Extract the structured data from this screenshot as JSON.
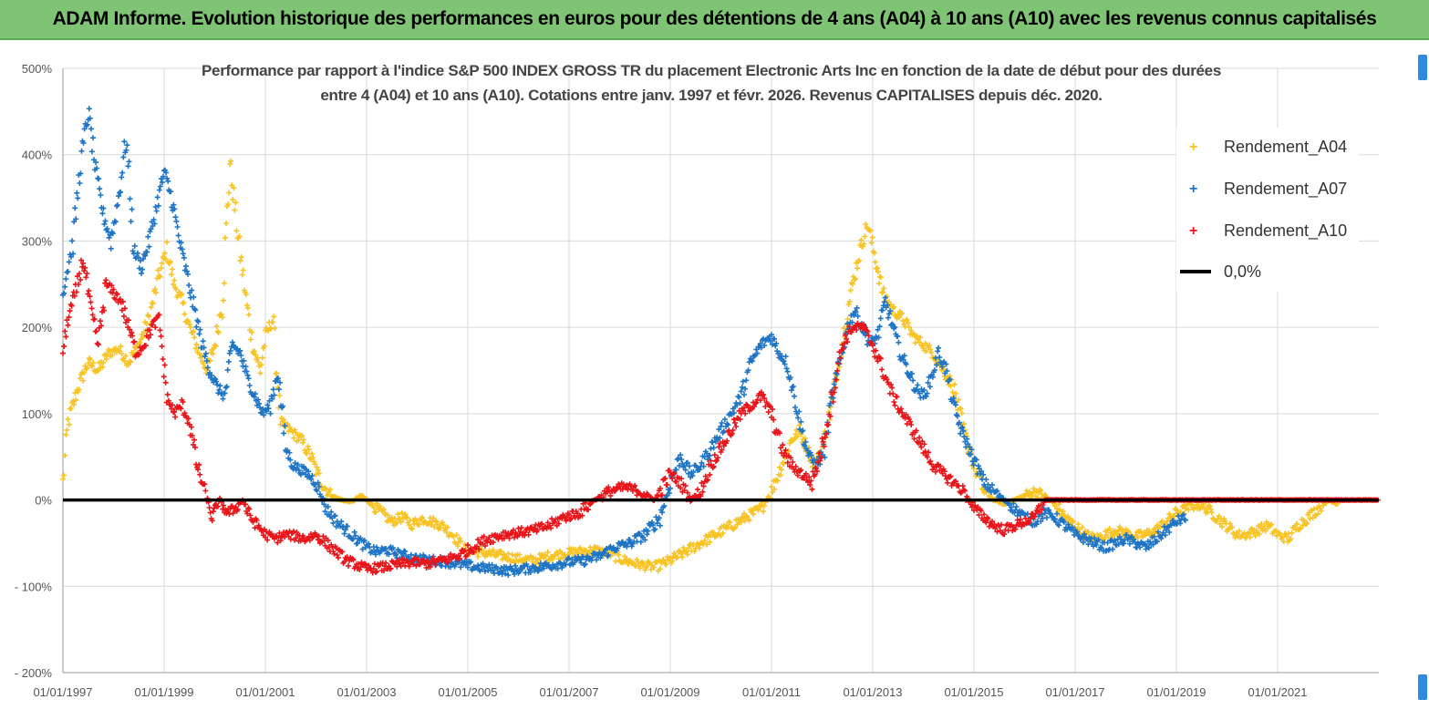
{
  "banner": {
    "title": "ADAM Informe. Evolution historique des performances en euros pour des détentions de 4 ans (A04) à 10 ans (A10) avec les revenus connus capitalisés"
  },
  "colors": {
    "banner_bg": "#7fc374",
    "A04": "#f7c325",
    "A07": "#1f75c4",
    "A10": "#e8151b",
    "zero_line": "#000000",
    "grid": "#d9d9d9"
  },
  "chart_data": {
    "type": "scatter",
    "title_line1": "Performance par rapport à l'indice S&P 500 INDEX GROSS TR  du placement Electronic Arts Inc en fonction de la date de début pour des durées",
    "title_line2": "entre 4 (A04) et 10 ans (A10).  Cotations entre janv. 1997 et févr. 2026. Revenus CAPITALISES depuis déc. 2020.",
    "xlabel": "",
    "ylabel": "",
    "x_range": [
      1997.0,
      2023.0
    ],
    "ylim": [
      -200,
      500
    ],
    "y_ticks": [
      500,
      400,
      300,
      200,
      100,
      0,
      -100,
      -200
    ],
    "y_tick_labels": [
      "500%",
      "400%",
      "300%",
      "200%",
      "100%",
      "0%",
      "- 100%",
      "- 200%"
    ],
    "x_ticks": [
      1997,
      1999,
      2001,
      2003,
      2005,
      2007,
      2009,
      2011,
      2013,
      2015,
      2017,
      2019,
      2021
    ],
    "x_tick_labels": [
      "01/01/1997",
      "01/01/1999",
      "01/01/2001",
      "01/01/2003",
      "01/01/2005",
      "01/01/2007",
      "01/01/2009",
      "01/01/2011",
      "01/01/2013",
      "01/01/2015",
      "01/01/2017",
      "01/01/2019",
      "01/01/2021"
    ],
    "grid": true,
    "legend_position": "top-right",
    "series": [
      {
        "name": "Rendement_A04",
        "marker": "+",
        "x": [
          1997.0,
          1997.1,
          1997.3,
          1997.5,
          1997.7,
          1997.9,
          1998.1,
          1998.3,
          1998.5,
          1998.7,
          1998.9,
          1999.05,
          1999.2,
          1999.35,
          1999.5,
          1999.7,
          1999.85,
          2000.0,
          2000.15,
          2000.3,
          2000.45,
          2000.6,
          2000.75,
          2000.9,
          2001.0,
          2001.15,
          2001.3,
          2001.5,
          2001.7,
          2001.9,
          2002.1,
          2002.3,
          2002.5,
          2002.7,
          2002.9,
          2003.1,
          2003.3,
          2003.5,
          2003.7,
          2003.9,
          2004.1,
          2004.3,
          2004.5,
          2004.7,
          2004.9,
          2005.1,
          2005.4,
          2005.7,
          2006.0,
          2006.3,
          2006.6,
          2006.9,
          2007.2,
          2007.5,
          2007.8,
          2008.1,
          2008.4,
          2008.7,
          2009.0,
          2009.3,
          2009.6,
          2009.9,
          2010.2,
          2010.5,
          2010.8,
          2011.0,
          2011.2,
          2011.4,
          2011.55,
          2011.7,
          2011.85,
          2012.0,
          2012.15,
          2012.3,
          2012.45,
          2012.6,
          2012.75,
          2012.9,
          2013.05,
          2013.2,
          2013.4,
          2013.6,
          2013.8,
          2014.0,
          2014.2,
          2014.4,
          2014.6,
          2014.8,
          2015.0,
          2015.2,
          2015.4,
          2015.6,
          2015.8,
          2016.0,
          2016.2,
          2016.4,
          2016.6,
          2016.8,
          2017.0,
          2017.2,
          2017.4,
          2017.6,
          2017.8,
          2018.0,
          2018.2,
          2018.4,
          2018.6,
          2018.8,
          2019.0,
          2019.2,
          2019.4,
          2019.6,
          2019.8,
          2020.0,
          2020.2,
          2020.4,
          2020.6,
          2020.8,
          2021.0,
          2021.2,
          2021.4,
          2021.6,
          2021.8,
          2022.0,
          2022.2
        ],
        "y": [
          20,
          90,
          130,
          160,
          150,
          170,
          175,
          160,
          180,
          210,
          260,
          290,
          250,
          230,
          200,
          170,
          150,
          180,
          230,
          390,
          310,
          240,
          180,
          150,
          190,
          210,
          90,
          80,
          70,
          50,
          20,
          5,
          0,
          -2,
          5,
          -5,
          -15,
          -25,
          -20,
          -28,
          -22,
          -25,
          -30,
          -40,
          -55,
          -60,
          -62,
          -65,
          -68,
          -70,
          -65,
          -62,
          -60,
          -58,
          -62,
          -70,
          -75,
          -78,
          -70,
          -60,
          -50,
          -40,
          -30,
          -20,
          -10,
          10,
          40,
          70,
          80,
          60,
          40,
          60,
          100,
          150,
          200,
          250,
          290,
          320,
          280,
          240,
          220,
          210,
          190,
          180,
          170,
          150,
          130,
          80,
          40,
          10,
          0,
          -5,
          0,
          5,
          10,
          5,
          -5,
          -20,
          -30,
          -40,
          -45,
          -40,
          -35,
          -38,
          -42,
          -40,
          -35,
          -25,
          -15,
          -10,
          -5,
          -10,
          -20,
          -30,
          -40,
          -40,
          -35,
          -30,
          -40,
          -45,
          -30,
          -20,
          -10,
          0,
          -5
        ]
      },
      {
        "name": "Rendement_A07",
        "marker": "+",
        "x": [
          1997.0,
          1997.1,
          1997.2,
          1997.35,
          1997.5,
          1997.65,
          1997.8,
          1997.95,
          1998.1,
          1998.25,
          1998.4,
          1998.55,
          1998.7,
          1998.85,
          1999.0,
          1999.15,
          1999.3,
          1999.45,
          1999.6,
          1999.75,
          1999.9,
          2000.05,
          2000.2,
          2000.35,
          2000.5,
          2000.65,
          2000.8,
          2000.95,
          2001.1,
          2001.25,
          2001.4,
          2001.55,
          2001.7,
          2001.85,
          2002.0,
          2002.2,
          2002.4,
          2002.6,
          2002.8,
          2003.0,
          2003.2,
          2003.4,
          2003.6,
          2003.8,
          2004.0,
          2004.3,
          2004.6,
          2004.9,
          2005.2,
          2005.5,
          2005.8,
          2006.1,
          2006.4,
          2006.7,
          2007.0,
          2007.3,
          2007.6,
          2007.9,
          2008.2,
          2008.5,
          2008.8,
          2009.0,
          2009.2,
          2009.4,
          2009.6,
          2009.8,
          2010.0,
          2010.2,
          2010.4,
          2010.6,
          2010.8,
          2011.0,
          2011.15,
          2011.3,
          2011.45,
          2011.6,
          2011.75,
          2011.9,
          2012.05,
          2012.2,
          2012.35,
          2012.5,
          2012.65,
          2012.8,
          2012.95,
          2013.1,
          2013.25,
          2013.4,
          2013.55,
          2013.7,
          2013.85,
          2014.0,
          2014.15,
          2014.3,
          2014.45,
          2014.6,
          2014.75,
          2014.9,
          2015.05,
          2015.2,
          2015.4,
          2015.6,
          2015.8,
          2016.0,
          2016.2,
          2016.4,
          2016.6,
          2016.8,
          2017.0,
          2017.2,
          2017.4,
          2017.6,
          2017.8,
          2018.0,
          2018.2,
          2018.4,
          2018.6,
          2018.8,
          2019.0,
          2019.2
        ],
        "y": [
          240,
          270,
          300,
          390,
          450,
          380,
          330,
          300,
          350,
          420,
          290,
          270,
          300,
          340,
          380,
          350,
          300,
          260,
          220,
          180,
          150,
          130,
          120,
          180,
          170,
          140,
          120,
          100,
          110,
          150,
          60,
          40,
          35,
          30,
          20,
          -10,
          -25,
          -35,
          -45,
          -55,
          -60,
          -58,
          -62,
          -65,
          -68,
          -70,
          -72,
          -75,
          -78,
          -80,
          -82,
          -80,
          -78,
          -75,
          -72,
          -70,
          -65,
          -55,
          -50,
          -40,
          -20,
          20,
          50,
          30,
          40,
          60,
          80,
          100,
          120,
          160,
          180,
          190,
          170,
          160,
          120,
          80,
          50,
          40,
          60,
          120,
          160,
          200,
          220,
          200,
          180,
          190,
          230,
          200,
          170,
          150,
          130,
          120,
          140,
          170,
          150,
          110,
          80,
          60,
          40,
          20,
          10,
          0,
          -10,
          -20,
          -25,
          -15,
          -20,
          -30,
          -40,
          -45,
          -50,
          -55,
          -50,
          -45,
          -50,
          -55,
          -45,
          -35,
          -25,
          -20
        ]
      },
      {
        "name": "Rendement_A10",
        "marker": "+",
        "x": [
          1997.0,
          1997.1,
          1997.25,
          1997.4,
          1997.55,
          1997.7,
          1997.85,
          1998.0,
          1998.15,
          1998.3,
          1998.45,
          1998.6,
          1998.75,
          1998.9,
          1999.05,
          1999.2,
          1999.35,
          1999.5,
          1999.65,
          1999.8,
          1999.95,
          2000.1,
          2000.25,
          2000.4,
          2000.55,
          2000.7,
          2000.85,
          2001.0,
          2001.2,
          2001.4,
          2001.6,
          2001.8,
          2002.0,
          2002.2,
          2002.4,
          2002.6,
          2002.8,
          2003.0,
          2003.3,
          2003.6,
          2003.9,
          2004.2,
          2004.5,
          2004.8,
          2005.1,
          2005.4,
          2005.7,
          2006.0,
          2006.3,
          2006.6,
          2006.9,
          2007.2,
          2007.5,
          2007.8,
          2008.1,
          2008.4,
          2008.7,
          2009.0,
          2009.2,
          2009.4,
          2009.6,
          2009.8,
          2010.0,
          2010.2,
          2010.4,
          2010.6,
          2010.8,
          2011.0,
          2011.2,
          2011.4,
          2011.6,
          2011.8,
          2012.0,
          2012.2,
          2012.4,
          2012.6,
          2012.8,
          2013.0,
          2013.2,
          2013.4,
          2013.6,
          2013.8,
          2014.0,
          2014.2,
          2014.4,
          2014.6,
          2014.8,
          2015.0,
          2015.2,
          2015.4,
          2015.6,
          2015.8,
          2016.0,
          2016.2,
          2016.4,
          2016.6,
          2016.8,
          2017.0,
          2017.5,
          2018.0,
          2018.5,
          2019.0,
          2019.5,
          2020.0,
          2020.5,
          2021.0,
          2021.5,
          2022.0,
          2022.5,
          2023.0
        ],
        "y": [
          170,
          210,
          240,
          280,
          220,
          180,
          250,
          240,
          230,
          200,
          170,
          180,
          200,
          210,
          120,
          100,
          110,
          90,
          40,
          10,
          -20,
          0,
          -15,
          -10,
          0,
          -20,
          -30,
          -40,
          -45,
          -40,
          -42,
          -45,
          -40,
          -50,
          -60,
          -70,
          -75,
          -80,
          -78,
          -75,
          -72,
          -74,
          -70,
          -65,
          -55,
          -45,
          -40,
          -38,
          -35,
          -30,
          -20,
          -15,
          0,
          10,
          15,
          10,
          0,
          30,
          20,
          0,
          10,
          40,
          60,
          80,
          100,
          110,
          120,
          100,
          60,
          40,
          30,
          20,
          60,
          120,
          180,
          200,
          200,
          180,
          150,
          120,
          100,
          80,
          60,
          40,
          30,
          20,
          10,
          -10,
          -20,
          -30,
          -35,
          -30,
          -25,
          -20,
          0,
          0,
          0,
          0,
          0,
          0,
          0,
          0,
          0,
          0,
          0,
          0,
          0,
          0,
          0,
          0
        ]
      }
    ],
    "reference_line": {
      "name": "0,0%",
      "y": 0
    }
  }
}
